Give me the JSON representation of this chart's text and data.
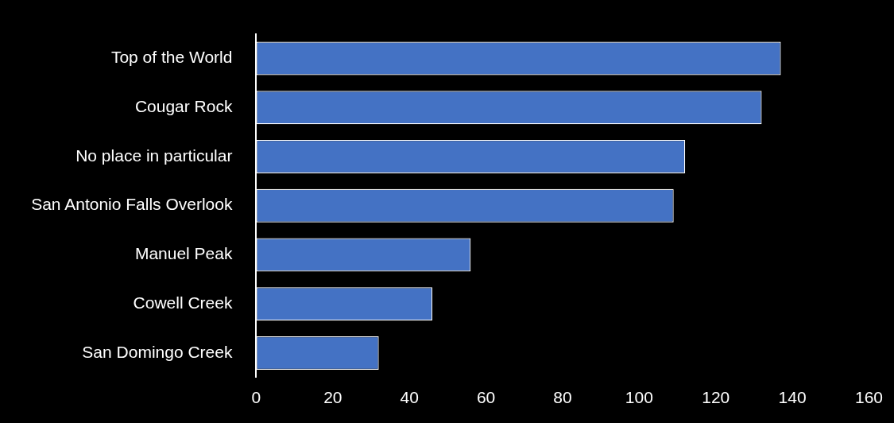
{
  "chart_data": {
    "type": "bar",
    "orientation": "horizontal",
    "categories": [
      "Top of the World",
      "Cougar Rock",
      "No place in particular",
      "San Antonio Falls Overlook",
      "Manuel Peak",
      "Cowell Creek",
      "San Domingo Creek"
    ],
    "values": [
      137,
      132,
      112,
      109,
      56,
      46,
      32
    ],
    "color": "#4472c4",
    "xlim": [
      0,
      160
    ],
    "xticks": [
      0,
      20,
      40,
      60,
      80,
      100,
      120,
      140,
      160
    ],
    "grid": false,
    "legend": false
  }
}
